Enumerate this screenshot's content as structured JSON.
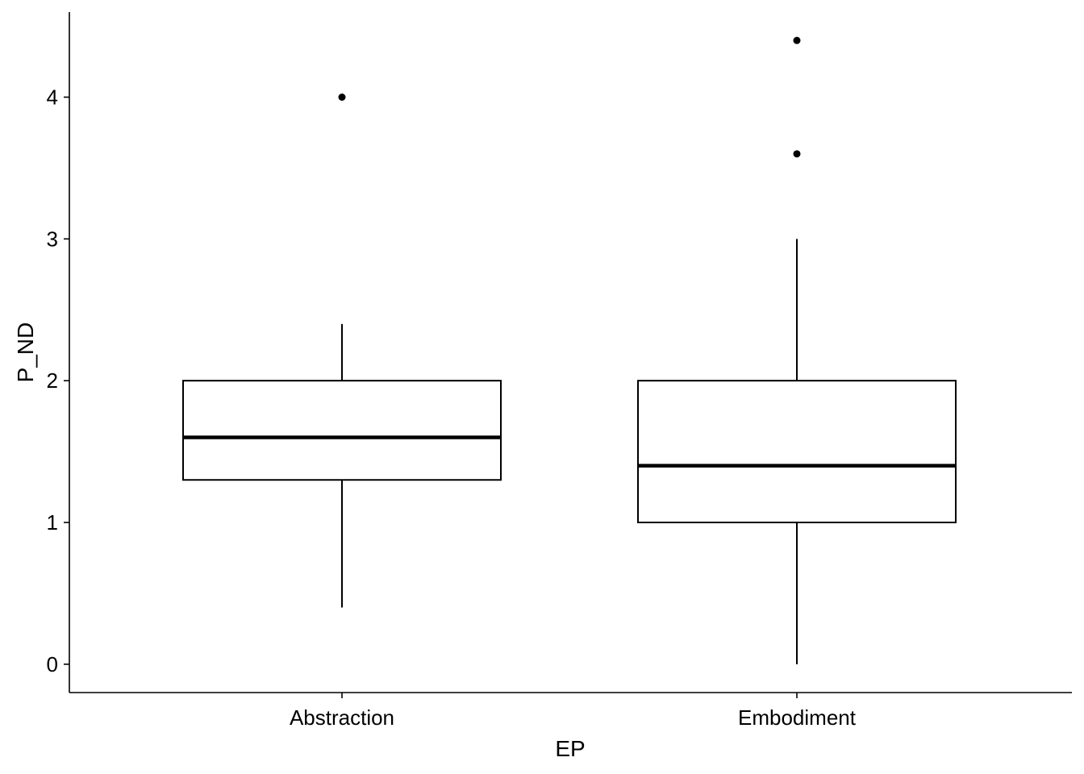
{
  "chart_data": {
    "type": "boxplot",
    "xlabel": "EP",
    "ylabel": "P_ND",
    "categories": [
      "Abstraction",
      "Embodiment"
    ],
    "ylim": [
      -0.2,
      4.6
    ],
    "yticks": [
      0,
      1,
      2,
      3,
      4
    ],
    "ytick_labels": [
      "0",
      "1",
      "2",
      "3",
      "4"
    ],
    "grid": false,
    "legend": "none",
    "boxes": [
      {
        "category": "Abstraction",
        "lower_whisker": 0.4,
        "q1": 1.3,
        "median": 1.6,
        "q3": 2.0,
        "upper_whisker": 2.4,
        "outliers": [
          4.0
        ]
      },
      {
        "category": "Embodiment",
        "lower_whisker": 0.0,
        "q1": 1.0,
        "median": 1.4,
        "q3": 2.0,
        "upper_whisker": 3.0,
        "outliers": [
          3.6,
          4.4
        ]
      }
    ]
  }
}
